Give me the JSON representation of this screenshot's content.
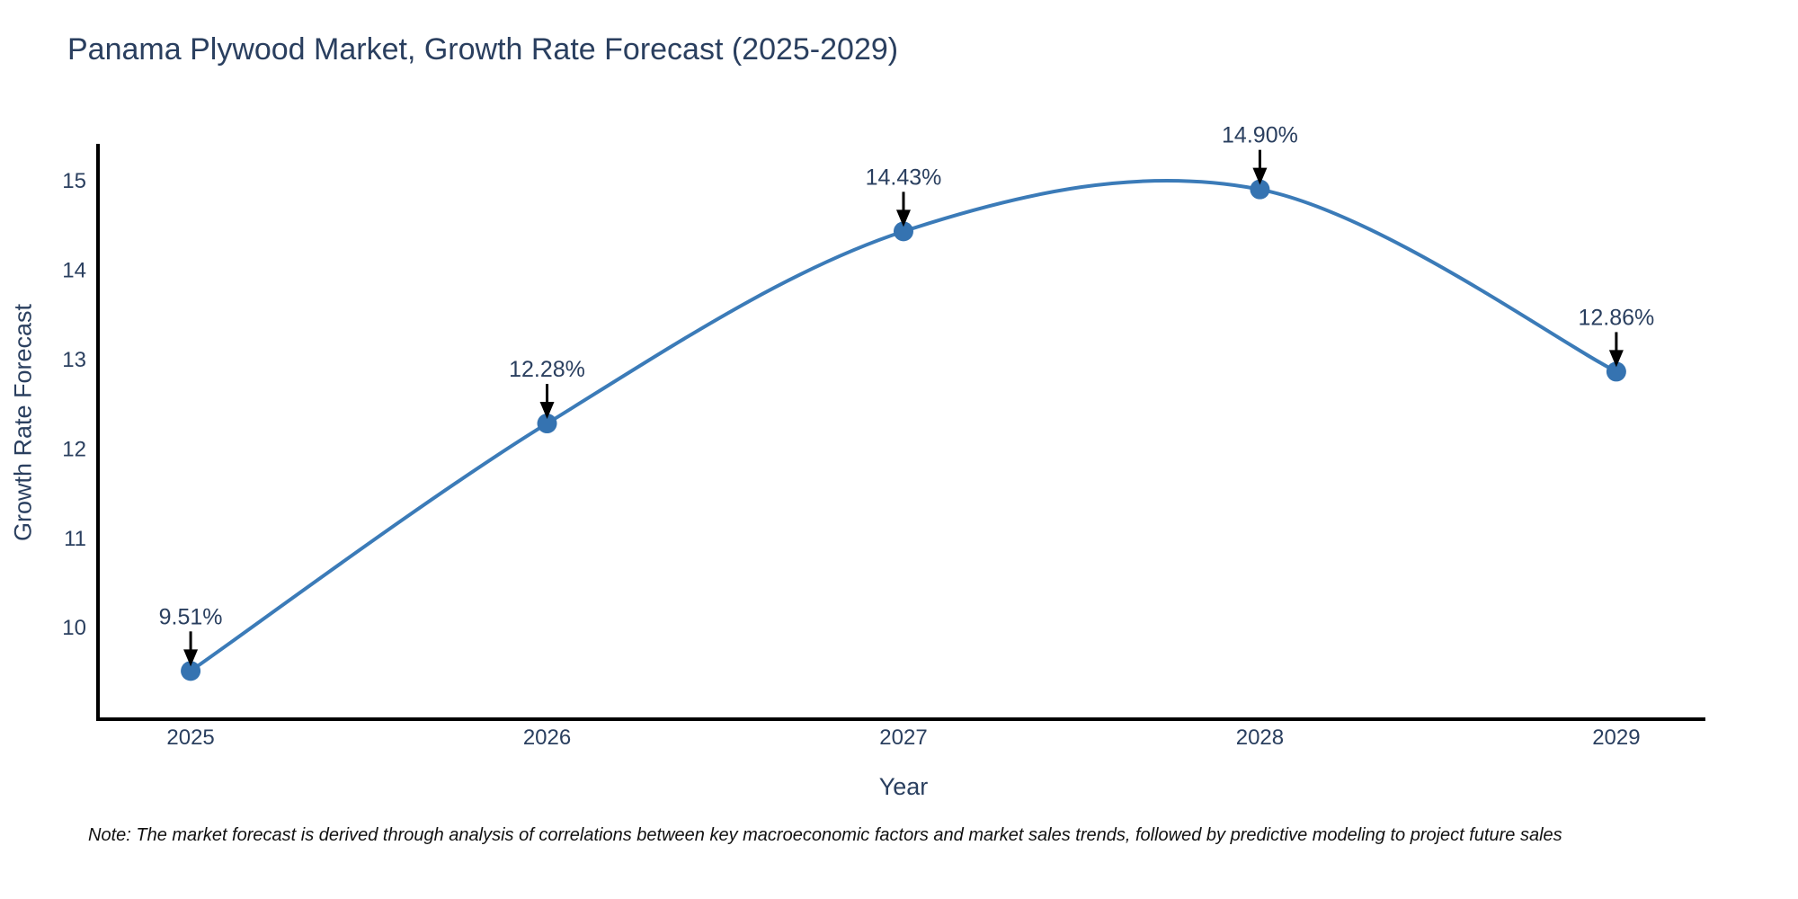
{
  "chart_data": {
    "type": "line",
    "line_shape": "spline",
    "title": "Panama Plywood Market, Growth Rate Forecast (2025-2029)",
    "xlabel": "Year",
    "ylabel": "Growth Rate Forecast",
    "x": [
      2025,
      2026,
      2027,
      2028,
      2029
    ],
    "x_tick_labels": [
      "2025",
      "2026",
      "2027",
      "2028",
      "2029"
    ],
    "series": [
      {
        "name": "Growth Rate Forecast",
        "values": [
          9.51,
          12.28,
          14.43,
          14.9,
          12.86
        ],
        "point_labels": [
          "9.51%",
          "12.28%",
          "14.43%",
          "14.90%",
          "12.86%"
        ]
      }
    ],
    "yticks": [
      10,
      11,
      12,
      13,
      14,
      15
    ],
    "ylim": [
      8.97,
      15.41
    ],
    "xlim": [
      2024.74,
      2029.25
    ],
    "grid": false,
    "legend": "none",
    "markers": true,
    "annotations_arrows": true,
    "colors": {
      "line": "#3b7bb8",
      "marker": "#3573b1",
      "text": "#2a3f5f",
      "axis": "#000000",
      "arrow": "#000000"
    },
    "note": "Note: The market forecast is derived through analysis of correlations between key macroeconomic factors and market sales trends, followed by predictive modeling to project future sales"
  }
}
